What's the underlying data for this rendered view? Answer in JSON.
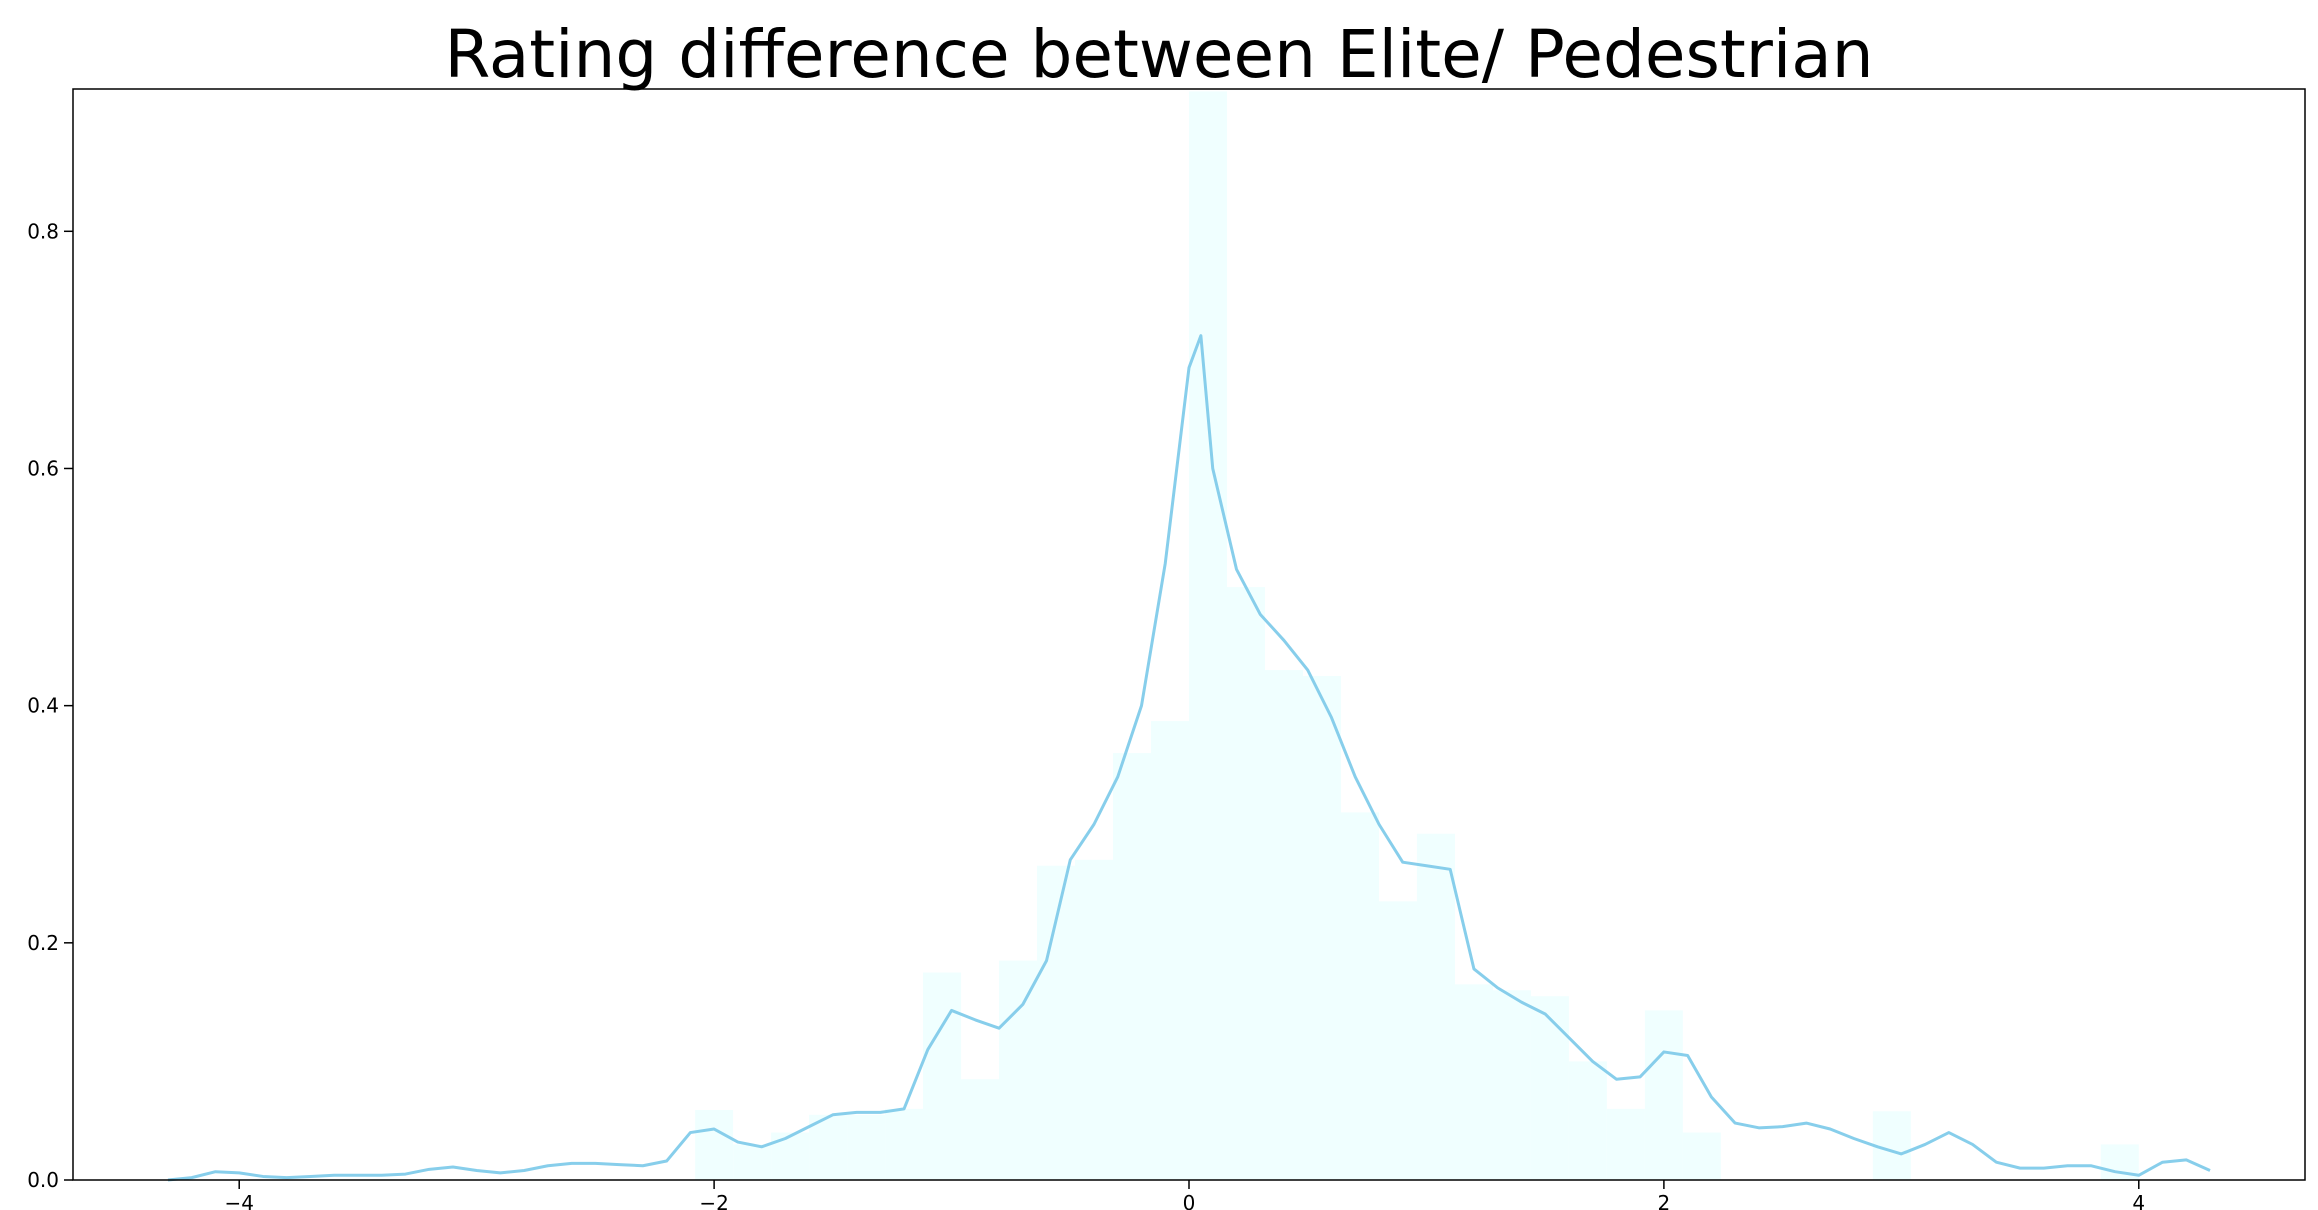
{
  "chart_data": {
    "type": "histogram",
    "title": "Rating difference between Elite/ Pedestrian",
    "xlabel": "",
    "ylabel": "",
    "xlim": [
      -4.7,
      4.7
    ],
    "ylim": [
      0,
      0.92
    ],
    "x_ticks": [
      -4,
      -2,
      0,
      2,
      4
    ],
    "x_tick_labels": [
      "−4",
      "−2",
      "0",
      "2",
      "4"
    ],
    "y_ticks": [
      0.0,
      0.2,
      0.4,
      0.6,
      0.8
    ],
    "y_tick_labels": [
      "0.0",
      "0.2",
      "0.4",
      "0.6",
      "0.8"
    ],
    "grid": false,
    "legend": "none",
    "colors": {
      "histogram_fill": "#f0ffff",
      "density_line": "#87ceeb",
      "axes": "#000000"
    },
    "histogram": {
      "bin_width": 0.16,
      "bins": [
        {
          "start": -2.08,
          "end": -1.92,
          "value": 0.059
        },
        {
          "start": -1.92,
          "end": -1.76,
          "value": 0.03
        },
        {
          "start": -1.76,
          "end": -1.6,
          "value": 0.04
        },
        {
          "start": -1.6,
          "end": -1.44,
          "value": 0.055
        },
        {
          "start": -1.44,
          "end": -1.28,
          "value": 0.055
        },
        {
          "start": -1.28,
          "end": -1.12,
          "value": 0.06
        },
        {
          "start": -1.12,
          "end": -0.96,
          "value": 0.175
        },
        {
          "start": -0.96,
          "end": -0.8,
          "value": 0.085
        },
        {
          "start": -0.8,
          "end": -0.64,
          "value": 0.185
        },
        {
          "start": -0.64,
          "end": -0.48,
          "value": 0.265
        },
        {
          "start": -0.48,
          "end": -0.32,
          "value": 0.27
        },
        {
          "start": -0.32,
          "end": -0.16,
          "value": 0.36
        },
        {
          "start": -0.16,
          "end": 0.0,
          "value": 0.387
        },
        {
          "start": 0.0,
          "end": 0.16,
          "value": 0.918
        },
        {
          "start": 0.16,
          "end": 0.32,
          "value": 0.5
        },
        {
          "start": 0.32,
          "end": 0.48,
          "value": 0.43
        },
        {
          "start": 0.48,
          "end": 0.64,
          "value": 0.425
        },
        {
          "start": 0.64,
          "end": 0.8,
          "value": 0.31
        },
        {
          "start": 0.8,
          "end": 0.96,
          "value": 0.235
        },
        {
          "start": 0.96,
          "end": 1.12,
          "value": 0.292
        },
        {
          "start": 1.12,
          "end": 1.28,
          "value": 0.165
        },
        {
          "start": 1.28,
          "end": 1.44,
          "value": 0.16
        },
        {
          "start": 1.44,
          "end": 1.6,
          "value": 0.155
        },
        {
          "start": 1.6,
          "end": 1.76,
          "value": 0.1
        },
        {
          "start": 1.76,
          "end": 1.92,
          "value": 0.06
        },
        {
          "start": 1.92,
          "end": 2.08,
          "value": 0.143
        },
        {
          "start": 2.08,
          "end": 2.24,
          "value": 0.04
        },
        {
          "start": 2.88,
          "end": 3.04,
          "value": 0.058
        },
        {
          "start": 3.84,
          "end": 4.0,
          "value": 0.03
        }
      ]
    },
    "density": {
      "x": [
        -4.3,
        -4.2,
        -4.1,
        -4.0,
        -3.9,
        -3.8,
        -3.7,
        -3.6,
        -3.5,
        -3.4,
        -3.3,
        -3.2,
        -3.1,
        -3.0,
        -2.9,
        -2.8,
        -2.7,
        -2.6,
        -2.5,
        -2.4,
        -2.3,
        -2.2,
        -2.1,
        -2.0,
        -1.9,
        -1.8,
        -1.7,
        -1.6,
        -1.5,
        -1.4,
        -1.3,
        -1.2,
        -1.1,
        -1.0,
        -0.9,
        -0.8,
        -0.7,
        -0.6,
        -0.5,
        -0.4,
        -0.3,
        -0.2,
        -0.1,
        0.0,
        0.05,
        0.1,
        0.2,
        0.3,
        0.4,
        0.5,
        0.6,
        0.7,
        0.8,
        0.9,
        1.0,
        1.1,
        1.2,
        1.3,
        1.4,
        1.5,
        1.6,
        1.7,
        1.8,
        1.9,
        2.0,
        2.1,
        2.2,
        2.3,
        2.4,
        2.5,
        2.6,
        2.7,
        2.8,
        2.9,
        3.0,
        3.1,
        3.2,
        3.3,
        3.4,
        3.5,
        3.6,
        3.7,
        3.8,
        3.9,
        4.0,
        4.1,
        4.2,
        4.3
      ],
      "y": [
        0.0,
        0.002,
        0.007,
        0.006,
        0.003,
        0.002,
        0.003,
        0.004,
        0.004,
        0.004,
        0.005,
        0.009,
        0.011,
        0.008,
        0.006,
        0.008,
        0.012,
        0.014,
        0.014,
        0.013,
        0.012,
        0.016,
        0.04,
        0.043,
        0.032,
        0.028,
        0.035,
        0.045,
        0.055,
        0.057,
        0.057,
        0.06,
        0.11,
        0.143,
        0.135,
        0.128,
        0.148,
        0.185,
        0.27,
        0.3,
        0.34,
        0.4,
        0.52,
        0.685,
        0.712,
        0.6,
        0.515,
        0.477,
        0.455,
        0.43,
        0.39,
        0.34,
        0.3,
        0.268,
        0.265,
        0.262,
        0.178,
        0.162,
        0.15,
        0.14,
        0.12,
        0.1,
        0.085,
        0.087,
        0.108,
        0.105,
        0.07,
        0.048,
        0.044,
        0.045,
        0.048,
        0.043,
        0.035,
        0.028,
        0.022,
        0.03,
        0.04,
        0.03,
        0.015,
        0.01,
        0.01,
        0.012,
        0.012,
        0.007,
        0.004,
        0.015,
        0.017,
        0.008
      ]
    }
  }
}
